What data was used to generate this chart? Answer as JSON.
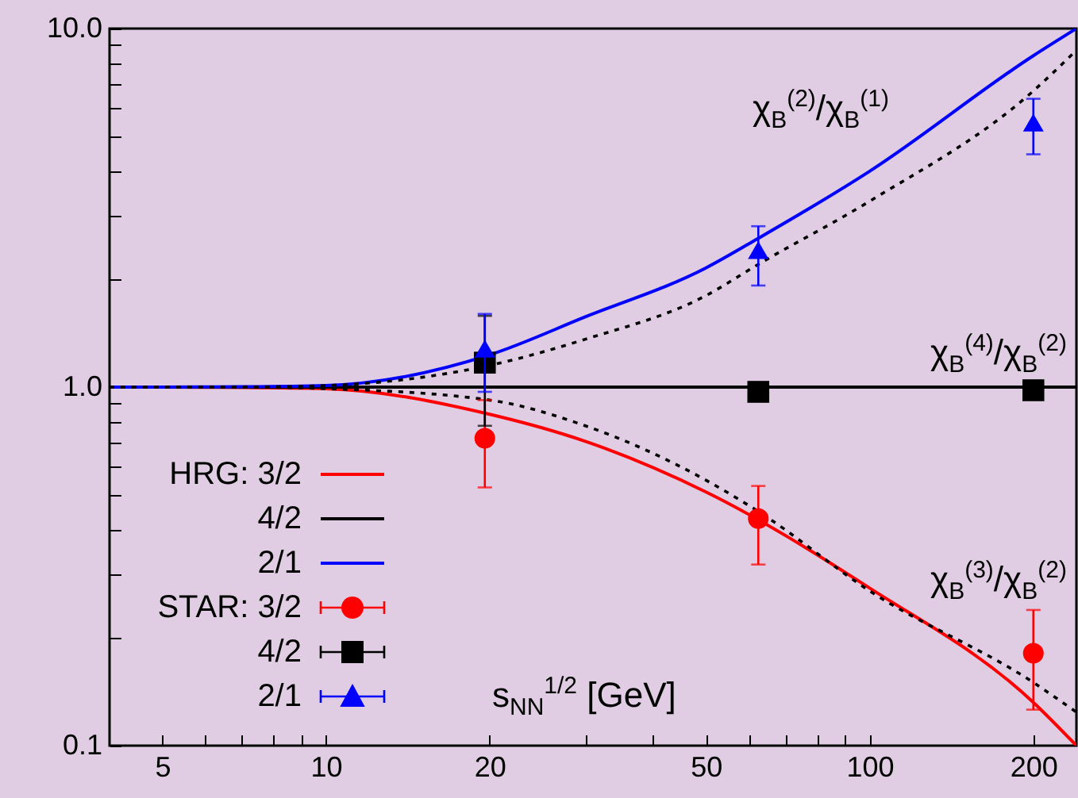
{
  "chart_data": {
    "type": "line",
    "xlabel": "s$_{NN}$$^{1/2}$ [GeV]",
    "xlim": [
      4,
      240
    ],
    "ylim": [
      0.1,
      10
    ],
    "log": "xy",
    "grid": false,
    "legend": "bottom left",
    "xticks": [
      5,
      10,
      20,
      50,
      100,
      200,
      {
        "value": 6,
        "label": null
      },
      {
        "value": 7,
        "label": null
      },
      {
        "value": 8,
        "label": null
      },
      {
        "value": 9,
        "label": null
      },
      {
        "value": 30,
        "label": null
      },
      {
        "value": 40,
        "label": null
      },
      {
        "value": 60,
        "label": null
      },
      {
        "value": 70,
        "label": null
      },
      {
        "value": 80,
        "label": null
      },
      {
        "value": 90,
        "label": null
      }
    ],
    "yticks": [
      {
        "value": 0.1,
        "label": "0.1"
      },
      {
        "value": 1,
        "label": "1.0"
      },
      {
        "value": 10,
        "label": "10.0"
      },
      {
        "value": 0.2,
        "label": null
      },
      {
        "value": 0.3,
        "label": null
      },
      {
        "value": 0.4,
        "label": null
      },
      {
        "value": 0.5,
        "label": null
      },
      {
        "value": 0.6,
        "label": null
      },
      {
        "value": 0.7,
        "label": null
      },
      {
        "value": 0.8,
        "label": null
      },
      {
        "value": 0.9,
        "label": null
      },
      {
        "value": 2,
        "label": null
      },
      {
        "value": 3,
        "label": null
      },
      {
        "value": 4,
        "label": null
      },
      {
        "value": 5,
        "label": null
      },
      {
        "value": 6,
        "label": null
      },
      {
        "value": 7,
        "label": null
      },
      {
        "value": 8,
        "label": null
      },
      {
        "value": 9,
        "label": null
      }
    ],
    "series": [
      {
        "name": "HRG: 3/2",
        "type": "line",
        "color": "#ff0000",
        "line_style": "solid",
        "x": [
          4,
          5,
          7,
          10,
          20,
          30,
          50,
          100,
          200,
          240
        ],
        "values": [
          1,
          1,
          0.998,
          0.99,
          0.84,
          0.706,
          0.51,
          0.275,
          0.132,
          0.1
        ]
      },
      {
        "name": "4/2",
        "type": "line",
        "color": "#000000",
        "line_style": "solid",
        "x": [
          4,
          240
        ],
        "values": [
          1,
          1
        ]
      },
      {
        "name": "2/1",
        "type": "line",
        "color": "#0000ff",
        "line_style": "solid",
        "x": [
          4,
          5,
          7,
          10,
          20,
          30,
          50,
          62.4,
          100,
          200,
          240
        ],
        "values": [
          1,
          1,
          1.002,
          1.01,
          1.23,
          1.57,
          2.15,
          2.6,
          4.0,
          8.4,
          10
        ]
      },
      {
        "type": "line",
        "color": "#000000",
        "line_style": "dotted",
        "x": [
          4,
          7,
          10,
          20,
          30,
          50,
          62.4,
          100,
          200,
          240
        ],
        "values": [
          1,
          1,
          1.01,
          1.15,
          1.36,
          1.8,
          2.2,
          3.3,
          6.7,
          8.7
        ]
      },
      {
        "type": "line",
        "color": "#000000",
        "line_style": "dotted",
        "x": [
          4,
          7,
          10,
          20,
          30,
          50,
          62.4,
          100,
          200,
          240
        ],
        "values": [
          1,
          1,
          0.99,
          0.92,
          0.78,
          0.55,
          0.45,
          0.27,
          0.15,
          0.124
        ]
      },
      {
        "name": "STAR: 3/2",
        "type": "scatter",
        "color": "#ff0000",
        "marker": "circle",
        "x": [
          19.6,
          62.4,
          200
        ],
        "values": [
          0.72,
          0.43,
          0.181
        ],
        "errors": [
          [
            0.525,
            0.92
          ],
          [
            0.32,
            0.53
          ],
          [
            0.126,
            0.239
          ]
        ]
      },
      {
        "name": "4/2",
        "type": "scatter",
        "color": "#000000",
        "marker": "square",
        "x": [
          19.6,
          62.4,
          200
        ],
        "values": [
          1.17,
          0.97,
          0.98
        ],
        "errors": [
          [
            0.78,
            1.58
          ],
          null,
          null
        ]
      },
      {
        "name": "2/1",
        "type": "scatter",
        "color": "#0000ff",
        "marker": "triangle",
        "x": [
          19.6,
          62.4,
          200
        ],
        "values": [
          1.28,
          2.41,
          5.47
        ],
        "errors": [
          [
            0.97,
            1.6
          ],
          [
            1.92,
            2.81
          ],
          [
            4.46,
            6.37
          ]
        ]
      }
    ],
    "annotations": [
      "χ$_{B}$$^{(2)}$/χ$_{B}$$^{(1)}$",
      "χ$_{B}$$^{(4)}$/χ$_{B}$$^{(2)}$",
      "χ$_{B}$$^{(3)}$/χ$_{B}$$^{(2)}$"
    ]
  }
}
